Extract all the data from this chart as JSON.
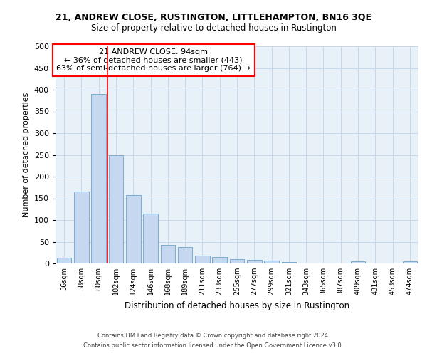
{
  "title_line1": "21, ANDREW CLOSE, RUSTINGTON, LITTLEHAMPTON, BN16 3QE",
  "title_line2": "Size of property relative to detached houses in Rustington",
  "xlabel": "Distribution of detached houses by size in Rustington",
  "ylabel": "Number of detached properties",
  "categories": [
    "36sqm",
    "58sqm",
    "80sqm",
    "102sqm",
    "124sqm",
    "146sqm",
    "168sqm",
    "189sqm",
    "211sqm",
    "233sqm",
    "255sqm",
    "277sqm",
    "299sqm",
    "321sqm",
    "343sqm",
    "365sqm",
    "387sqm",
    "409sqm",
    "431sqm",
    "453sqm",
    "474sqm"
  ],
  "values": [
    13,
    166,
    390,
    250,
    157,
    114,
    43,
    38,
    18,
    15,
    10,
    8,
    6,
    4,
    0,
    0,
    0,
    5,
    0,
    0,
    5
  ],
  "bar_color": "#c5d8f0",
  "bar_edge_color": "#7aadd4",
  "grid_color": "#c8d8ec",
  "background_color": "#e8f0f8",
  "annotation_text": "21 ANDREW CLOSE: 94sqm\n← 36% of detached houses are smaller (443)\n63% of semi-detached houses are larger (764) →",
  "annotation_box_color": "white",
  "annotation_box_edge_color": "red",
  "vline_color": "red",
  "vline_x": 2.5,
  "ylim": [
    0,
    500
  ],
  "yticks": [
    0,
    50,
    100,
    150,
    200,
    250,
    300,
    350,
    400,
    450,
    500
  ],
  "footer_line1": "Contains HM Land Registry data © Crown copyright and database right 2024.",
  "footer_line2": "Contains public sector information licensed under the Open Government Licence v3.0."
}
